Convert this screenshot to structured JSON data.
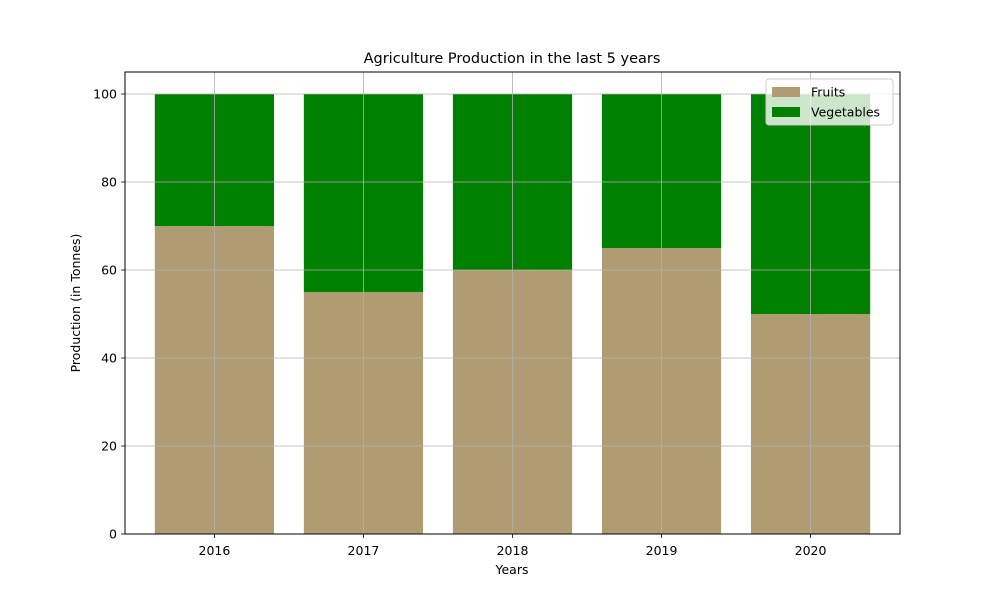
{
  "chart_data": {
    "type": "bar",
    "stacked": true,
    "title": "Agriculture Production in the last 5 years",
    "xlabel": "Years",
    "ylabel": "Production (in Tonnes)",
    "categories": [
      "2016",
      "2017",
      "2018",
      "2019",
      "2020"
    ],
    "series": [
      {
        "name": "Fruits",
        "values": [
          70,
          55,
          60,
          65,
          50
        ],
        "color": "#b09c72"
      },
      {
        "name": "Vegetables",
        "values": [
          30,
          45,
          40,
          35,
          50
        ],
        "color": "#008000"
      }
    ],
    "ylim": [
      0,
      105
    ],
    "yticks": [
      0,
      20,
      40,
      60,
      80,
      100
    ],
    "grid": true,
    "legend": "top-right"
  }
}
